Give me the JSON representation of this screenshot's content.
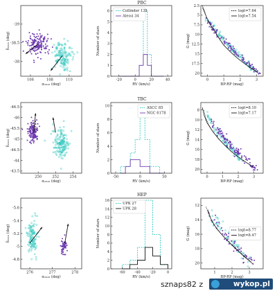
{
  "colors": {
    "cyan": "#35c9c0",
    "purple": "#6f3bb0",
    "black": "#111111"
  },
  "rows": [
    {
      "title": "PBC",
      "sky": {
        "xlabel": "α₂₀₁₆ (deg)",
        "ylabel": "δ₂₀₁₆ (deg)",
        "xlim": [
          105.0,
          111.3
        ],
        "ylim": [
          -39.5,
          -37.6
        ],
        "yinvert": true,
        "xticks": [
          106,
          108,
          110
        ],
        "yticks": [
          -38,
          -38.5,
          -39
        ],
        "clusters": [
          {
            "cx": 106.7,
            "cy": -38.45,
            "sx": 0.85,
            "sy": 0.27,
            "n": 150,
            "color": "purple",
            "seed": 11,
            "arrow": [
              106.7,
              -38.45,
              105.5,
              -38.2
            ]
          },
          {
            "cx": 109.3,
            "cy": -38.15,
            "sx": 0.85,
            "sy": 0.32,
            "n": 150,
            "color": "cyan",
            "seed": 12,
            "arrow": [
              109.3,
              -38.15,
              108.1,
              -37.75
            ]
          }
        ]
      },
      "hist": {
        "xlabel": "RV (km/s)",
        "ylabel": "Number of stars",
        "xlim": [
          -30,
          45
        ],
        "ylim": [
          0,
          6.5
        ],
        "xticks": [
          -20,
          0,
          20,
          40
        ],
        "yticks": [
          0,
          1,
          2,
          3,
          4,
          5,
          6
        ],
        "series": [
          {
            "name": "Collinder 135",
            "color": "cyan",
            "dashed": true,
            "edges": [
              -20,
              -15,
              -10,
              -5,
              0,
              5,
              10,
              15,
              20,
              25,
              30,
              35
            ],
            "counts": [
              0,
              0,
              0,
              0,
              0,
              1,
              6,
              2,
              0,
              0,
              0
            ]
          },
          {
            "name": "Alessi 34",
            "color": "purple",
            "dashed": false,
            "edges": [
              -20,
              -15,
              -10,
              -5,
              0,
              5,
              10,
              15,
              20,
              25,
              30,
              35
            ],
            "counts": [
              0,
              0,
              0,
              0,
              0,
              1,
              2,
              1,
              0,
              0,
              0
            ]
          }
        ],
        "legend_pos": "top-left"
      },
      "cmd": {
        "xlabel": "BP-RP (mag)",
        "ylabel": "G (mag)",
        "xlim": [
          -0.4,
          3.4
        ],
        "ylim": [
          2.5,
          20.8
        ],
        "yinvert": true,
        "xticks": [
          0,
          1,
          2,
          3
        ],
        "yticks": [
          2.5,
          5.0,
          7.5,
          10.0,
          12.5,
          15.0,
          17.5,
          20.0
        ],
        "iso": [
          {
            "name": "logt=7.64",
            "color": "black",
            "dashed": true,
            "pts": [
              [
                -0.3,
                2.6
              ],
              [
                -0.2,
                3.5
              ],
              [
                -0.1,
                5.0
              ],
              [
                0.1,
                7.0
              ],
              [
                0.4,
                9.0
              ],
              [
                0.7,
                11.0
              ],
              [
                1.0,
                12.8
              ],
              [
                1.4,
                14.5
              ],
              [
                1.8,
                16.0
              ],
              [
                2.2,
                17.3
              ],
              [
                2.6,
                18.5
              ],
              [
                3.0,
                19.6
              ]
            ]
          },
          {
            "name": "logt=7.54",
            "color": "black",
            "dashed": false,
            "pts": [
              [
                -0.3,
                3.0
              ],
              [
                -0.2,
                4.0
              ],
              [
                -0.05,
                5.5
              ],
              [
                0.15,
                7.3
              ],
              [
                0.45,
                9.2
              ],
              [
                0.75,
                11.2
              ],
              [
                1.05,
                13.0
              ],
              [
                1.45,
                14.7
              ],
              [
                1.85,
                16.2
              ],
              [
                2.25,
                17.5
              ],
              [
                2.65,
                18.7
              ],
              [
                3.05,
                19.8
              ]
            ]
          }
        ],
        "stars": [
          {
            "color": "cyan",
            "n": 110,
            "seed": 21,
            "x0": -0.1,
            "x1": 3.0,
            "g0": 5.0,
            "g1": 19.8,
            "spread": 0.5
          },
          {
            "color": "purple",
            "n": 90,
            "seed": 22,
            "x0": 0.0,
            "x1": 3.2,
            "g0": 6.0,
            "g1": 20.2,
            "spread": 0.6
          }
        ],
        "legend_pos": "top-right"
      }
    },
    {
      "title": "TBC",
      "sky": {
        "xlabel": "α₂₀₁₆ (deg)",
        "ylabel": "δ₂₀₁₆ (deg)",
        "xlim": [
          248.0,
          255.0
        ],
        "ylim": [
          -46.7,
          -43.4
        ],
        "yinvert": true,
        "xticks": [
          250,
          252,
          254
        ],
        "yticks": [
          -43.5,
          -44.0,
          -44.5,
          -45.0,
          -45.5,
          -46.0,
          -46.5
        ],
        "clusters": [
          {
            "cx": 249.4,
            "cy": -45.35,
            "sx": 0.5,
            "sy": 0.35,
            "n": 140,
            "color": "purple",
            "seed": 31,
            "arrow": [
              249.5,
              -45.3,
              249.7,
              -46.2
            ]
          },
          {
            "cx": 252.6,
            "cy": -44.8,
            "sx": 0.7,
            "sy": 0.6,
            "n": 160,
            "color": "cyan",
            "seed": 32,
            "arrow": [
              252.0,
              -45.3,
              251.7,
              -46.0
            ]
          }
        ]
      },
      "hist": {
        "xlabel": "RV (km/s)",
        "ylabel": "Number of stars",
        "xlim": [
          -60,
          65
        ],
        "ylim": [
          0,
          10.5
        ],
        "xticks": [
          -50,
          0,
          50
        ],
        "yticks": [
          0,
          2,
          4,
          6,
          8,
          10
        ],
        "series": [
          {
            "name": "ASCC 85",
            "color": "cyan",
            "dashed": true,
            "edges": [
              -40,
              -30,
              -20,
              -10,
              0,
              10,
              20,
              30,
              40,
              50
            ],
            "counts": [
              1,
              1,
              3,
              5,
              10,
              5,
              1,
              1,
              0
            ]
          },
          {
            "name": "NGC 6178",
            "color": "purple",
            "dashed": false,
            "edges": [
              -40,
              -30,
              -20,
              -10,
              0,
              10,
              20,
              30,
              40,
              50
            ],
            "counts": [
              0,
              1,
              2,
              2,
              1,
              1,
              0,
              0,
              0
            ]
          }
        ],
        "legend_pos": "top-right"
      },
      "cmd": {
        "xlabel": "BP-RP (mag)",
        "ylabel": "G (mag)",
        "xlim": [
          -0.4,
          3.6
        ],
        "ylim": [
          6.5,
          20.8
        ],
        "yinvert": true,
        "xticks": [
          0,
          1,
          2,
          3
        ],
        "yticks": [
          8,
          10,
          12,
          14,
          16,
          18,
          20
        ],
        "iso": [
          {
            "name": "logt=8.10",
            "color": "black",
            "dashed": true,
            "pts": [
              [
                -0.2,
                8.0
              ],
              [
                -0.1,
                9.5
              ],
              [
                0.1,
                11.0
              ],
              [
                0.4,
                12.5
              ],
              [
                0.8,
                14.0
              ],
              [
                1.2,
                15.3
              ],
              [
                1.6,
                16.5
              ],
              [
                2.0,
                17.5
              ],
              [
                2.5,
                18.6
              ],
              [
                3.0,
                19.6
              ]
            ]
          },
          {
            "name": "logt=7.17",
            "color": "black",
            "dashed": false,
            "pts": [
              [
                -0.3,
                7.5
              ],
              [
                -0.2,
                9.0
              ],
              [
                0.0,
                10.6
              ],
              [
                0.35,
                12.3
              ],
              [
                0.75,
                13.9
              ],
              [
                1.15,
                15.2
              ],
              [
                1.55,
                16.4
              ],
              [
                1.95,
                17.4
              ],
              [
                2.45,
                18.5
              ],
              [
                2.95,
                19.5
              ]
            ]
          }
        ],
        "stars": [
          {
            "color": "cyan",
            "n": 90,
            "seed": 41,
            "x0": -0.1,
            "x1": 2.2,
            "g0": 8.5,
            "g1": 18.0,
            "spread": 0.8
          },
          {
            "color": "purple",
            "n": 110,
            "seed": 42,
            "x0": 0.3,
            "x1": 3.3,
            "g0": 10.0,
            "g1": 20.3,
            "spread": 0.9
          }
        ],
        "legend_pos": "top-right"
      }
    },
    {
      "title": "HEP",
      "sky": {
        "xlabel": "α₂₀₁₆ (deg)",
        "ylabel": "δ₂₀₁₆ (deg)",
        "xlim": [
          275.6,
          278.3
        ],
        "ylim": [
          -5.75,
          -4.65
        ],
        "yinvert": true,
        "xticks": [
          276,
          277,
          278
        ],
        "yticks": [
          -4.8,
          -5.0,
          -5.2,
          -5.4,
          -5.6
        ],
        "clusters": [
          {
            "cx": 276.1,
            "cy": -5.15,
            "sx": 0.2,
            "sy": 0.23,
            "n": 120,
            "color": "cyan",
            "seed": 51,
            "arrow": [
              276.0,
              -5.05,
              276.55,
              -5.3
            ]
          },
          {
            "cx": 277.5,
            "cy": -5.0,
            "sx": 0.1,
            "sy": 0.1,
            "n": 60,
            "color": "purple",
            "seed": 52,
            "arrow": [
              277.55,
              -5.05,
              277.7,
              -5.35
            ]
          }
        ]
      },
      "hist": {
        "xlabel": "RV (km/s)",
        "ylabel": "Number of stars",
        "xlim": [
          -75,
          5
        ],
        "ylim": [
          0,
          16.5
        ],
        "xticks": [
          -60,
          -40,
          -20,
          0
        ],
        "yticks": [
          0,
          2,
          4,
          6,
          8,
          10,
          12,
          14,
          16
        ],
        "series": [
          {
            "name": "UPK 27",
            "color": "cyan",
            "dashed": true,
            "edges": [
              -60,
              -50,
              -40,
              -30,
              -20,
              -10,
              0
            ],
            "counts": [
              1,
              2,
              5,
              16,
              8,
              1
            ]
          },
          {
            "name": "UPK 28",
            "color": "black",
            "dashed": false,
            "edges": [
              -60,
              -50,
              -40,
              -30,
              -20,
              -10,
              0
            ],
            "counts": [
              0,
              1,
              2,
              5,
              3,
              1
            ]
          }
        ],
        "legend_pos": "top-left"
      },
      "cmd": {
        "xlabel": "BP-RP (mag)",
        "ylabel": "G (mag)",
        "xlim": [
          0.2,
          3.8
        ],
        "ylim": [
          11,
          20.8
        ],
        "yinvert": true,
        "xticks": [
          1,
          2,
          3
        ],
        "yticks": [
          12,
          14,
          16,
          18,
          20
        ],
        "iso": [
          {
            "name": "logt=8.77",
            "color": "black",
            "dashed": true,
            "pts": [
              [
                0.5,
                12.2
              ],
              [
                0.7,
                13.5
              ],
              [
                1.0,
                14.8
              ],
              [
                1.4,
                16.0
              ],
              [
                1.8,
                17.0
              ],
              [
                2.2,
                17.9
              ],
              [
                2.6,
                18.8
              ],
              [
                3.1,
                19.8
              ]
            ]
          },
          {
            "name": "logt=8.47",
            "color": "black",
            "dashed": false,
            "pts": [
              [
                0.6,
                12.6
              ],
              [
                0.8,
                14.0
              ],
              [
                1.1,
                15.2
              ],
              [
                1.5,
                16.3
              ],
              [
                1.9,
                17.3
              ],
              [
                2.3,
                18.2
              ],
              [
                2.7,
                19.1
              ],
              [
                3.2,
                20.1
              ]
            ]
          }
        ],
        "stars": [
          {
            "color": "cyan",
            "n": 60,
            "seed": 61,
            "x0": 0.7,
            "x1": 3.0,
            "g0": 12.5,
            "g1": 19.5,
            "spread": 0.8
          },
          {
            "color": "purple",
            "n": 50,
            "seed": 62,
            "x0": 0.8,
            "x1": 3.3,
            "g0": 13.0,
            "g1": 20.3,
            "spread": 0.9
          }
        ],
        "legend_pos": "middle-right"
      }
    }
  ],
  "footer": {
    "text": "sznaps82 z",
    "logo": "wykop.pl"
  }
}
